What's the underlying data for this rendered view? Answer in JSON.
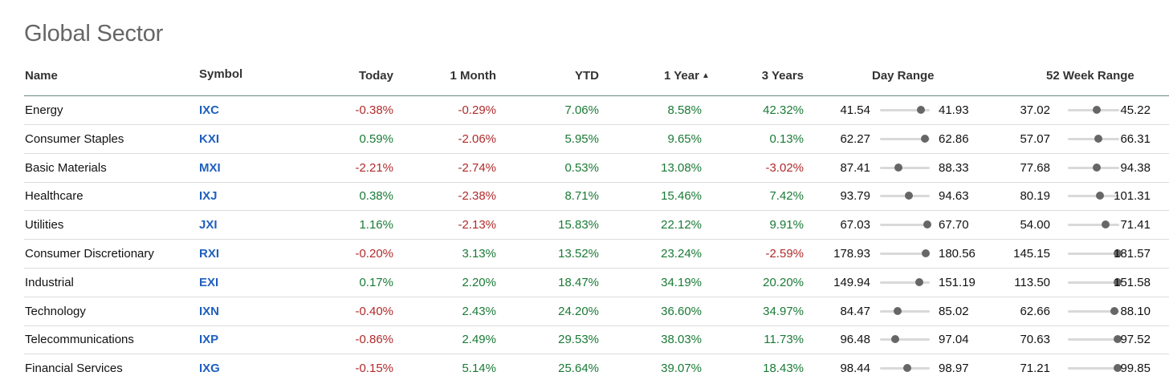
{
  "title": "Global Sector",
  "columns": {
    "name": "Name",
    "symbol": "Symbol",
    "today": "Today",
    "one_month": "1 Month",
    "ytd": "YTD",
    "one_year": "1 Year",
    "one_year_sort_indicator": "▲",
    "three_years": "3 Years",
    "day_range": "Day Range",
    "week52_range": "52 Week Range"
  },
  "colors": {
    "positive": "#1a7a36",
    "negative": "#b02a2a",
    "symbol": "#1f5fbf"
  },
  "rows": [
    {
      "name": "Energy",
      "symbol": "IXC",
      "today": "-0.38%",
      "one_month": "-0.29%",
      "ytd": "7.06%",
      "one_year": "8.58%",
      "three_years": "42.32%",
      "day_low": "41.54",
      "day_high": "41.93",
      "day_pos": 0.82,
      "w52_low": "37.02",
      "w52_high": "45.22",
      "w52_pos": 0.57
    },
    {
      "name": "Consumer Staples",
      "symbol": "KXI",
      "today": "0.59%",
      "one_month": "-2.06%",
      "ytd": "5.95%",
      "one_year": "9.65%",
      "three_years": "0.13%",
      "day_low": "62.27",
      "day_high": "62.86",
      "day_pos": 0.9,
      "w52_low": "57.07",
      "w52_high": "66.31",
      "w52_pos": 0.6
    },
    {
      "name": "Basic Materials",
      "symbol": "MXI",
      "today": "-2.21%",
      "one_month": "-2.74%",
      "ytd": "0.53%",
      "one_year": "13.08%",
      "three_years": "-3.02%",
      "day_low": "87.41",
      "day_high": "88.33",
      "day_pos": 0.37,
      "w52_low": "77.68",
      "w52_high": "94.38",
      "w52_pos": 0.57
    },
    {
      "name": "Healthcare",
      "symbol": "IXJ",
      "today": "0.38%",
      "one_month": "-2.38%",
      "ytd": "8.71%",
      "one_year": "15.46%",
      "three_years": "7.42%",
      "day_low": "93.79",
      "day_high": "94.63",
      "day_pos": 0.58,
      "w52_low": "80.19",
      "w52_high": "101.31",
      "w52_pos": 0.62
    },
    {
      "name": "Utilities",
      "symbol": "JXI",
      "today": "1.16%",
      "one_month": "-2.13%",
      "ytd": "15.83%",
      "one_year": "22.12%",
      "three_years": "9.91%",
      "day_low": "67.03",
      "day_high": "67.70",
      "day_pos": 0.95,
      "w52_low": "54.00",
      "w52_high": "71.41",
      "w52_pos": 0.73
    },
    {
      "name": "Consumer Discretionary",
      "symbol": "RXI",
      "today": "-0.20%",
      "one_month": "3.13%",
      "ytd": "13.52%",
      "one_year": "23.24%",
      "three_years": "-2.59%",
      "day_low": "178.93",
      "day_high": "180.56",
      "day_pos": 0.92,
      "w52_low": "145.15",
      "w52_high": "181.57",
      "w52_pos": 0.97
    },
    {
      "name": "Industrial",
      "symbol": "EXI",
      "today": "0.17%",
      "one_month": "2.20%",
      "ytd": "18.47%",
      "one_year": "34.19%",
      "three_years": "20.20%",
      "day_low": "149.94",
      "day_high": "151.19",
      "day_pos": 0.79,
      "w52_low": "113.50",
      "w52_high": "151.58",
      "w52_pos": 0.97
    },
    {
      "name": "Technology",
      "symbol": "IXN",
      "today": "-0.40%",
      "one_month": "2.43%",
      "ytd": "24.20%",
      "one_year": "36.60%",
      "three_years": "34.97%",
      "day_low": "84.47",
      "day_high": "85.02",
      "day_pos": 0.35,
      "w52_low": "62.66",
      "w52_high": "88.10",
      "w52_pos": 0.9
    },
    {
      "name": "Telecommunications",
      "symbol": "IXP",
      "today": "-0.86%",
      "one_month": "2.49%",
      "ytd": "29.53%",
      "one_year": "38.03%",
      "three_years": "11.73%",
      "day_low": "96.48",
      "day_high": "97.04",
      "day_pos": 0.3,
      "w52_low": "70.63",
      "w52_high": "97.52",
      "w52_pos": 0.97
    },
    {
      "name": "Financial Services",
      "symbol": "IXG",
      "today": "-0.15%",
      "one_month": "5.14%",
      "ytd": "25.64%",
      "one_year": "39.07%",
      "three_years": "18.43%",
      "day_low": "98.44",
      "day_high": "98.97",
      "day_pos": 0.55,
      "w52_low": "71.21",
      "w52_high": "99.85",
      "w52_pos": 0.97
    }
  ]
}
